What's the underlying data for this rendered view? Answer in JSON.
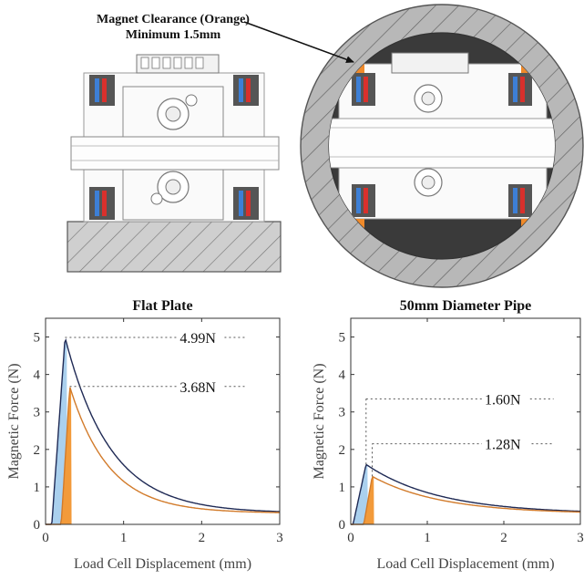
{
  "annotation": {
    "line1": "Magnet Clearance (Orange)",
    "line2": "Minimum 1.5mm"
  },
  "colors": {
    "magnet_blue": "#3d7fd6",
    "magnet_red": "#d9302c",
    "clearance_orange": "#f08a2a",
    "pipe_wall": "#b8b8b8",
    "pipe_interior": "#3a3a3a",
    "curve_blue_fill": "#aad0ee",
    "curve_orange_fill": "#f29a3a"
  },
  "chart_data": [
    {
      "type": "area",
      "title": "Flat Plate",
      "xlabel": "Load Cell Displacement (mm)",
      "ylabel": "Magnetic Force (N)",
      "xlim": [
        0,
        3
      ],
      "ylim": [
        0,
        5.5
      ],
      "xticks": [
        "0",
        "1",
        "2",
        "3"
      ],
      "yticks": [
        "0",
        "1",
        "2",
        "3",
        "4",
        "5"
      ],
      "grid": false,
      "series": [
        {
          "peak_x": 0.25,
          "peak_y": 4.99,
          "decay": 0.58,
          "start_x": 0.08,
          "end_y": 0.3
        },
        {
          "peak_x": 0.31,
          "peak_y": 3.68,
          "decay": 0.5,
          "start_x": 0.2,
          "end_y": 0.3
        }
      ],
      "annotations": [
        {
          "text": "4.99N",
          "x": 0.25,
          "y": 4.99
        },
        {
          "text": "3.68N",
          "x": 0.31,
          "y": 3.68
        }
      ]
    },
    {
      "type": "area",
      "title": "50mm Diameter Pipe",
      "xlabel": "Load Cell Displacement (mm)",
      "ylabel": "Magnetic Force (N)",
      "xlim": [
        0,
        3
      ],
      "ylim": [
        0,
        5.5
      ],
      "xticks": [
        "0",
        "1",
        "2",
        "3"
      ],
      "yticks": [
        "0",
        "1",
        "2",
        "3",
        "4",
        "5"
      ],
      "grid": false,
      "series": [
        {
          "peak_x": 0.2,
          "peak_y": 1.6,
          "decay": 0.95,
          "start_x": 0.03,
          "end_y": 0.28
        },
        {
          "peak_x": 0.28,
          "peak_y": 1.28,
          "decay": 0.9,
          "start_x": 0.17,
          "end_y": 0.28
        }
      ],
      "annotations": [
        {
          "text": "1.60N",
          "x": 0.2,
          "y": 1.6
        },
        {
          "text": "1.28N",
          "x": 0.28,
          "y": 1.28
        }
      ]
    }
  ]
}
